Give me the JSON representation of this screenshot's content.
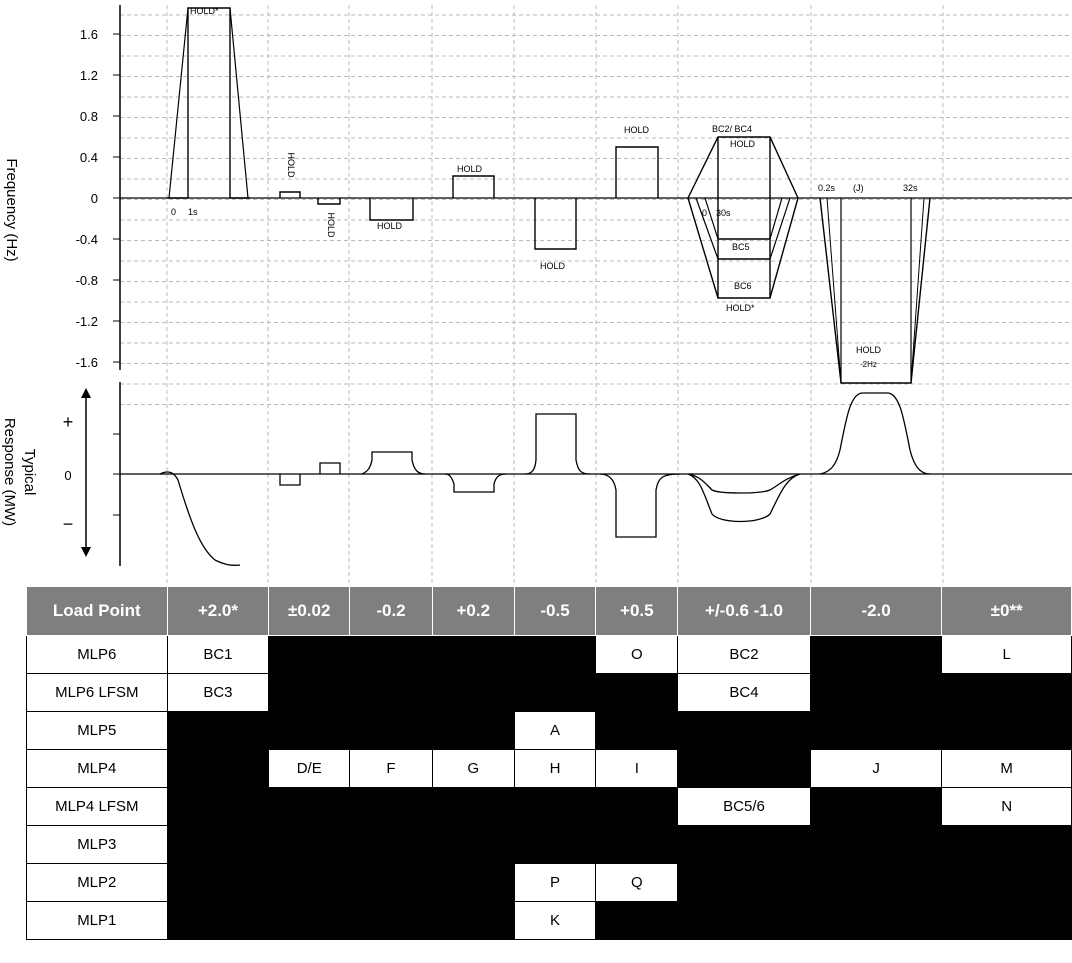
{
  "y_axis": {
    "label": "Frequency (Hz)",
    "ticks": [
      "1.6",
      "1.2",
      "0.8",
      "0.4",
      "0",
      "-0.4",
      "-0.8",
      "-1.2",
      "-1.6"
    ]
  },
  "response_axis": {
    "label_line1": "Typical",
    "label_line2": "Response (MW)",
    "ticks": [
      "+",
      "0",
      "−"
    ]
  },
  "annotations": {
    "hold_star": "HOLD*",
    "hold": "HOLD",
    "t0": "0",
    "t1s": "1s",
    "t0_2s": "0.2s",
    "t30s": "30s",
    "t32s": "32s",
    "j": "(J)",
    "bc24": "BC2/ BC4",
    "bc5": "BC5",
    "bc6": "BC6",
    "hold_2hz": "-2Hz"
  },
  "table": {
    "headers": [
      "Load Point",
      "+2.0*",
      "±0.02",
      "-0.2",
      "+0.2",
      "-0.5",
      "+0.5",
      "+/-0.6 -1.0",
      "-2.0",
      "±0**"
    ],
    "rows": [
      {
        "label": "MLP6",
        "cells": [
          "BC1",
          null,
          null,
          null,
          null,
          "O",
          "BC2",
          null,
          "L"
        ]
      },
      {
        "label": "MLP6 LFSM",
        "cells": [
          "BC3",
          null,
          null,
          null,
          null,
          null,
          "BC4",
          null,
          null
        ]
      },
      {
        "label": "MLP5",
        "cells": [
          null,
          null,
          null,
          null,
          "A",
          null,
          null,
          null,
          null
        ]
      },
      {
        "label": "MLP4",
        "cells": [
          null,
          "D/E",
          "F",
          "G",
          "H",
          "I",
          null,
          "J",
          "M"
        ]
      },
      {
        "label": "MLP4 LFSM",
        "cells": [
          null,
          null,
          null,
          null,
          null,
          null,
          "BC5/6",
          null,
          "N"
        ]
      },
      {
        "label": "MLP3",
        "cells": [
          null,
          null,
          null,
          null,
          null,
          null,
          null,
          null,
          null
        ]
      },
      {
        "label": "MLP2",
        "cells": [
          null,
          null,
          null,
          null,
          "P",
          "Q",
          null,
          null,
          null
        ]
      },
      {
        "label": "MLP1",
        "cells": [
          null,
          null,
          null,
          null,
          "K",
          null,
          null,
          null,
          null
        ]
      }
    ]
  }
}
